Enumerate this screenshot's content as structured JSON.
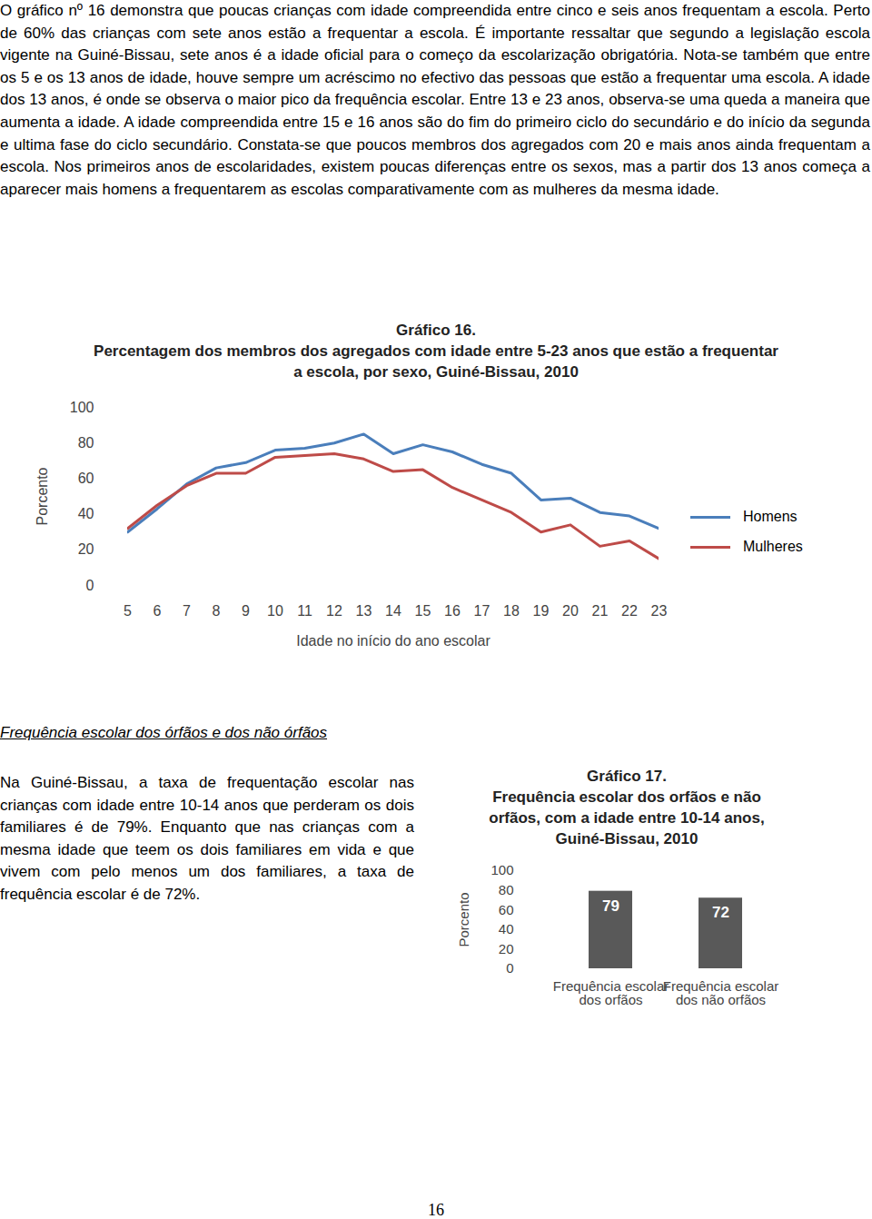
{
  "document": {
    "intro_paragraph": "O gráfico nº 16 demonstra que poucas crianças com idade compreendida entre cinco e seis anos frequentam a escola. Perto de 60% das crianças com sete anos estão a frequentar a escola. É importante ressaltar que segundo a legislação escola vigente na Guiné-Bissau, sete anos é a idade oficial para o começo da escolarização obrigatória. Nota-se também que entre os 5 e os 13 anos de idade, houve sempre um acréscimo no efectivo das pessoas que estão a frequentar uma escola. A idade dos 13 anos, é onde se observa o maior pico da frequência escolar. Entre 13 e 23 anos, observa-se uma queda a maneira que aumenta a idade. A idade compreendida entre 15 e 16 anos são do fim do primeiro ciclo do secundário e do início da segunda e ultima fase do ciclo secundário. Constata-se que poucos membros dos agregados com 20 e mais anos ainda frequentam a escola. Nos primeiros anos de escolaridades, existem poucas diferenças entre os sexos, mas a partir dos 13 anos começa a aparecer mais homens a frequentarem as escolas comparativamente com as mulheres da mesma idade.",
    "section_heading": "Frequência escolar dos órfãos e dos não órfãos",
    "section_paragraph": "Na Guiné-Bissau, a taxa de frequentação escolar nas crianças com idade entre 10-14 anos que perderam os dois familiares é de 79%. Enquanto que nas crianças com a mesma idade que teem os dois familiares em vida e que vivem com pelo menos um dos familiares, a taxa de frequência escolar é de 72%.",
    "page_number": "16"
  },
  "chart_data": [
    {
      "type": "line",
      "title": "Gráfico 16.",
      "subtitle": "Percentagem dos membros dos agregados com idade entre 5-23 anos que estão a frequentar a escola, por sexo, Guiné-Bissau, 2010",
      "x_label": "Idade no início do ano escolar",
      "y_label": "Porcento",
      "x": [
        5,
        6,
        7,
        8,
        9,
        10,
        11,
        12,
        13,
        14,
        15,
        16,
        17,
        18,
        19,
        20,
        21,
        22,
        23
      ],
      "series": [
        {
          "name": "Homens",
          "color": "#4a7ebb",
          "values": [
            30,
            43,
            57,
            66,
            69,
            76,
            77,
            80,
            85,
            74,
            79,
            75,
            68,
            63,
            48,
            49,
            41,
            39,
            32
          ]
        },
        {
          "name": "Mulheres",
          "color": "#be4b48",
          "values": [
            32,
            45,
            56,
            63,
            63,
            72,
            73,
            74,
            71,
            64,
            65,
            55,
            48,
            41,
            30,
            34,
            22,
            25,
            15
          ]
        }
      ],
      "xlim": [
        5,
        23
      ],
      "xticks": [
        5,
        6,
        7,
        8,
        9,
        10,
        11,
        12,
        13,
        14,
        15,
        16,
        17,
        18,
        19,
        20,
        21,
        22,
        23
      ],
      "ylim": [
        0,
        100
      ],
      "yticks": [
        0,
        20,
        40,
        60,
        80,
        100
      ],
      "grid": false,
      "legend": "right"
    },
    {
      "type": "bar",
      "title": "Gráfico 17.",
      "subtitle": "Frequência escolar dos orfãos e não orfãos, com a idade entre 10-14 anos, Guiné-Bissau, 2010",
      "y_label": "Porcento",
      "categories": [
        "Frequência escolar dos orfãos",
        "Frequência escolar dos não orfãos"
      ],
      "values": [
        79,
        72
      ],
      "color": "#595959",
      "ylim": [
        0,
        100
      ],
      "yticks": [
        0,
        20,
        40,
        60,
        80,
        100
      ],
      "grid": false,
      "data_labels": true
    }
  ]
}
